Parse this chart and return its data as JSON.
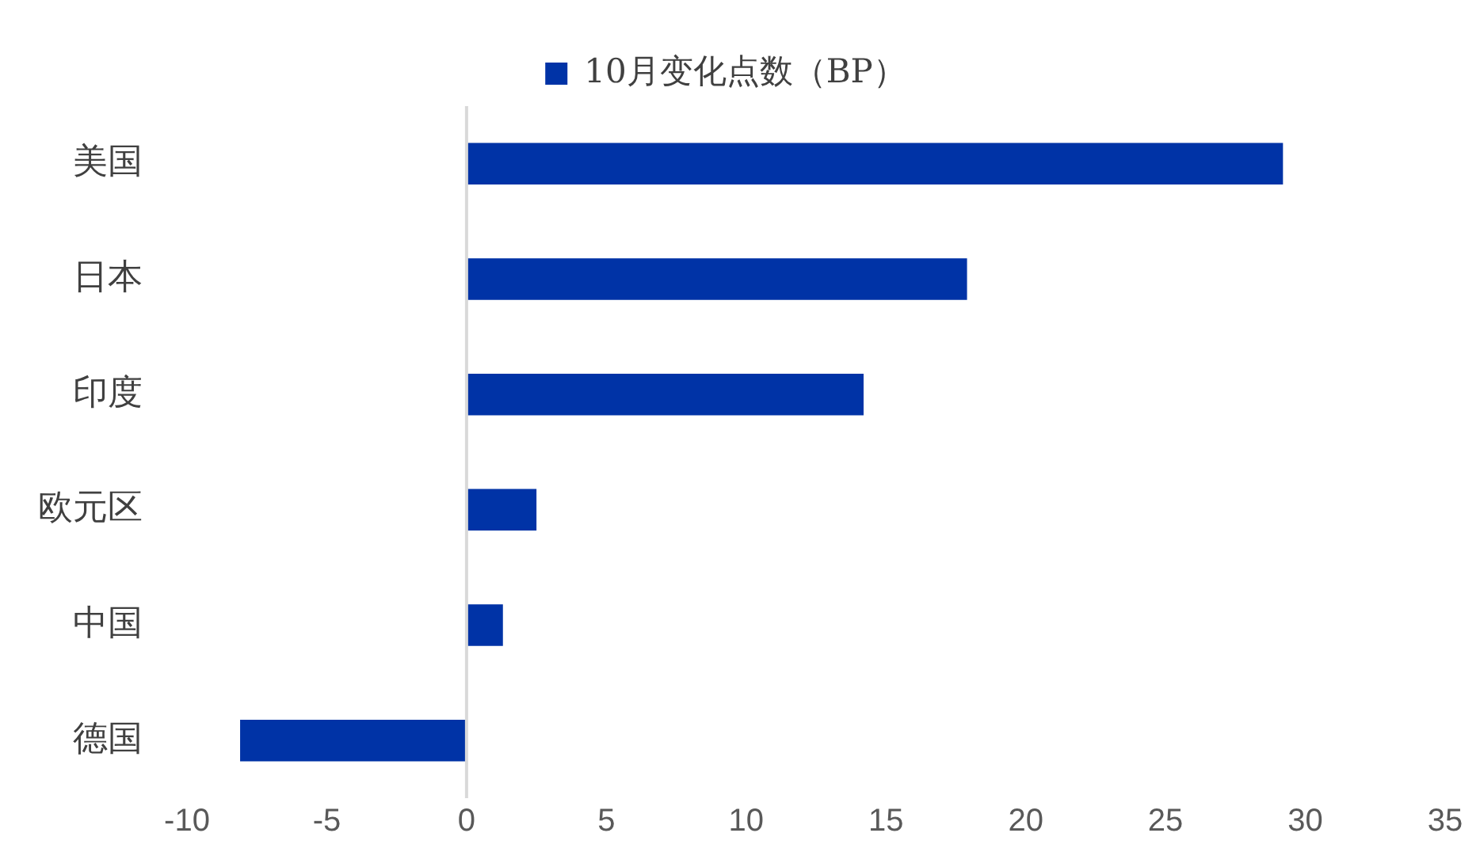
{
  "chart_data": {
    "type": "bar",
    "orientation": "horizontal",
    "categories": [
      "美国",
      "日本",
      "印度",
      "欧元区",
      "中国",
      "德国"
    ],
    "series": [
      {
        "name": "10月变化点数（BP）",
        "color": "#0033a6",
        "values": [
          29.2,
          17.9,
          14.2,
          2.5,
          1.3,
          -8.1
        ]
      }
    ],
    "xlim": [
      -10,
      35
    ],
    "xticks": [
      -10,
      -5,
      0,
      5,
      10,
      15,
      20,
      25,
      30,
      35
    ],
    "grid": false,
    "legend": "top",
    "ref_lines": [
      {
        "axis": "x",
        "value": 0,
        "color": "#d9d9d9"
      }
    ]
  }
}
